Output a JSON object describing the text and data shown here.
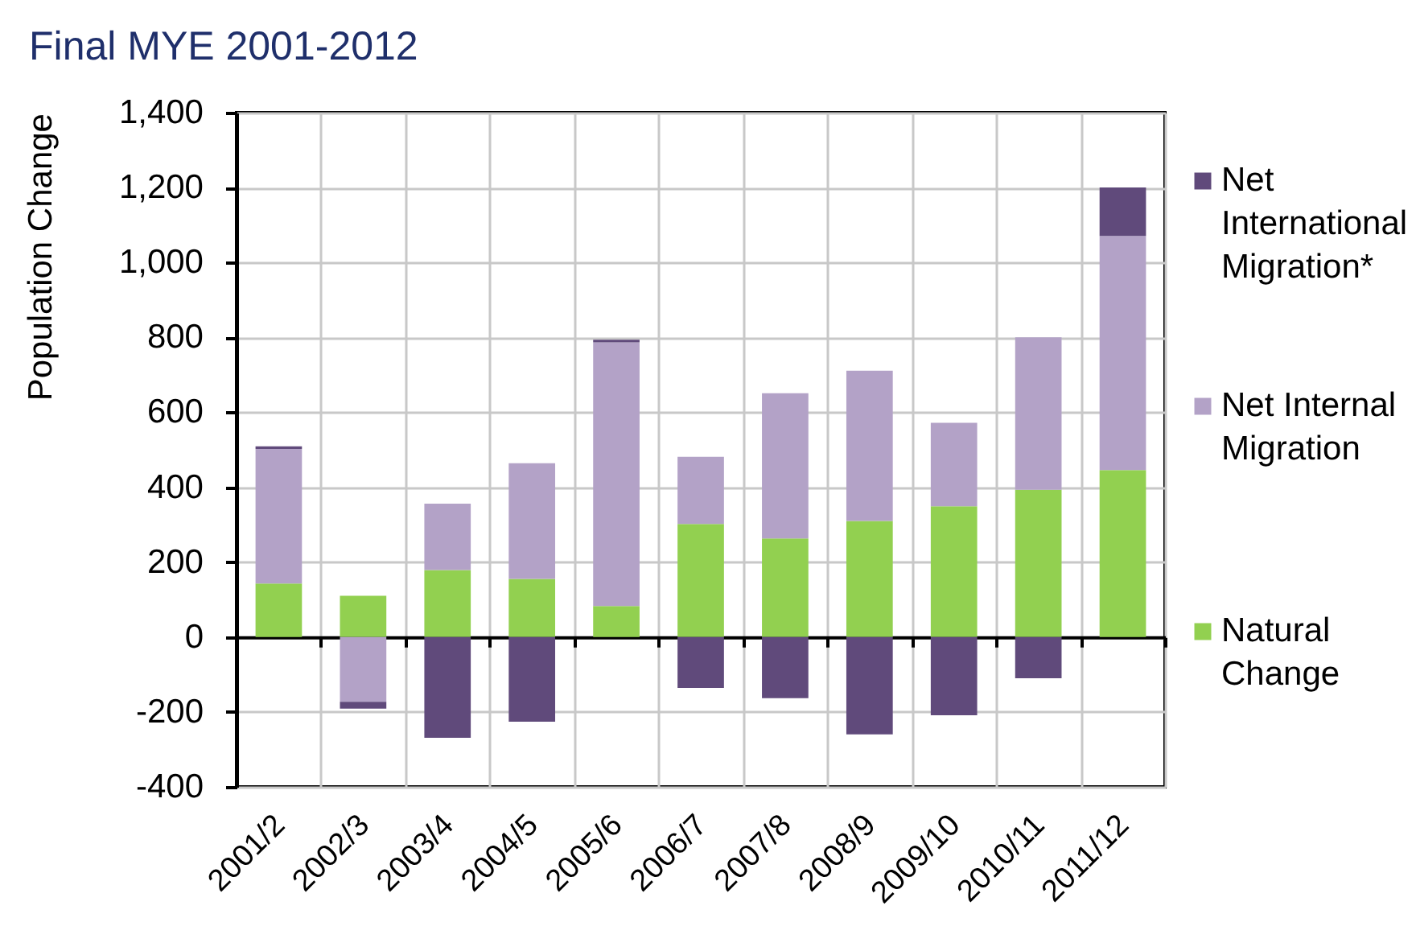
{
  "chart_data": {
    "type": "bar",
    "title": "Final MYE 2001-2012",
    "ylabel": "Population Change",
    "categories": [
      "2001/2",
      "2002/3",
      "2003/4",
      "2004/5",
      "2005/6",
      "2006/7",
      "2007/8",
      "2008/9",
      "2009/10",
      "2010/11",
      "2011/12"
    ],
    "series": [
      {
        "name": "Natural Change",
        "color": "#92d050",
        "values": [
          143,
          110,
          179,
          155,
          83,
          302,
          263,
          310,
          349,
          393,
          446
        ]
      },
      {
        "name": "Net Internal Migration",
        "color": "#b3a2c7",
        "values": [
          359,
          -173,
          177,
          309,
          704,
          179,
          388,
          401,
          223,
          407,
          625
        ]
      },
      {
        "name": "Net International Migration*",
        "color": "#604a7b",
        "values": [
          7,
          -18,
          -269,
          -226,
          7,
          -136,
          -163,
          -260,
          -209,
          -110,
          129
        ]
      }
    ],
    "stacked": true,
    "ylim": [
      -400,
      1400
    ],
    "yticks": [
      -400,
      -200,
      0,
      200,
      400,
      600,
      800,
      {
        "value": 1000,
        "label": "1,000"
      },
      {
        "value": 1200,
        "label": "1,200"
      },
      {
        "value": 1400,
        "label": "1,400"
      }
    ],
    "grid": true,
    "legend": "right"
  }
}
